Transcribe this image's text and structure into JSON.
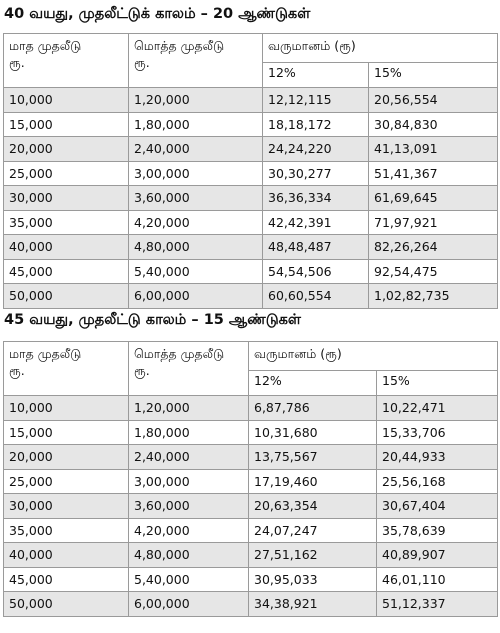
{
  "tables": [
    {
      "heading": "40 வயது, முதலீட்டுக் காலம் – 20  ஆண்டுகள்",
      "col1": "மாத முதலீடு",
      "col1_unit": "ரூ.",
      "col2": "மொத்த முதலீடு",
      "col2_unit": "ரூ.",
      "col3": "வருமானம் (ரூ)",
      "rate_a": "12%",
      "rate_b": "15%",
      "rows": [
        [
          "10,000",
          "1,20,000",
          "12,12,115",
          "20,56,554"
        ],
        [
          "15,000",
          "1,80,000",
          "18,18,172",
          "30,84,830"
        ],
        [
          "20,000",
          "2,40,000",
          "24,24,220",
          "41,13,091"
        ],
        [
          "25,000",
          "3,00,000",
          "30,30,277",
          "51,41,367"
        ],
        [
          "30,000",
          "3,60,000",
          "36,36,334",
          "61,69,645"
        ],
        [
          "35,000",
          "4,20,000",
          "42,42,391",
          "71,97,921"
        ],
        [
          "40,000",
          "4,80,000",
          "48,48,487",
          "82,26,264"
        ],
        [
          "45,000",
          "5,40,000",
          "54,54,506",
          "92,54,475"
        ],
        [
          "50,000",
          "6,00,000",
          "60,60,554",
          "1,02,82,735"
        ]
      ]
    },
    {
      "heading": "45 வயது, முதலீட்டு காலம் – 15  ஆண்டுகள்",
      "col1": "மாத முதலீடு",
      "col1_unit": "ரூ.",
      "col2": "மொத்த முதலீடு",
      "col2_unit": "ரூ.",
      "col3": "வருமானம் (ரூ)",
      "rate_a": "12%",
      "rate_b": "15%",
      "rows": [
        [
          "10,000",
          "1,20,000",
          "6,87,786",
          "10,22,471"
        ],
        [
          "15,000",
          "1,80,000",
          "10,31,680",
          "15,33,706"
        ],
        [
          "20,000",
          "2,40,000",
          "13,75,567",
          "20,44,933"
        ],
        [
          "25,000",
          "3,00,000",
          "17,19,460",
          "25,56,168"
        ],
        [
          "30,000",
          "3,60,000",
          "20,63,354",
          "30,67,404"
        ],
        [
          "35,000",
          "4,20,000",
          "24,07,247",
          "35,78,639"
        ],
        [
          "40,000",
          "4,80,000",
          "27,51,162",
          "40,89,907"
        ],
        [
          "45,000",
          "5,40,000",
          "30,95,033",
          "46,01,110"
        ],
        [
          "50,000",
          "6,00,000",
          "34,38,921",
          "51,12,337"
        ]
      ]
    }
  ]
}
